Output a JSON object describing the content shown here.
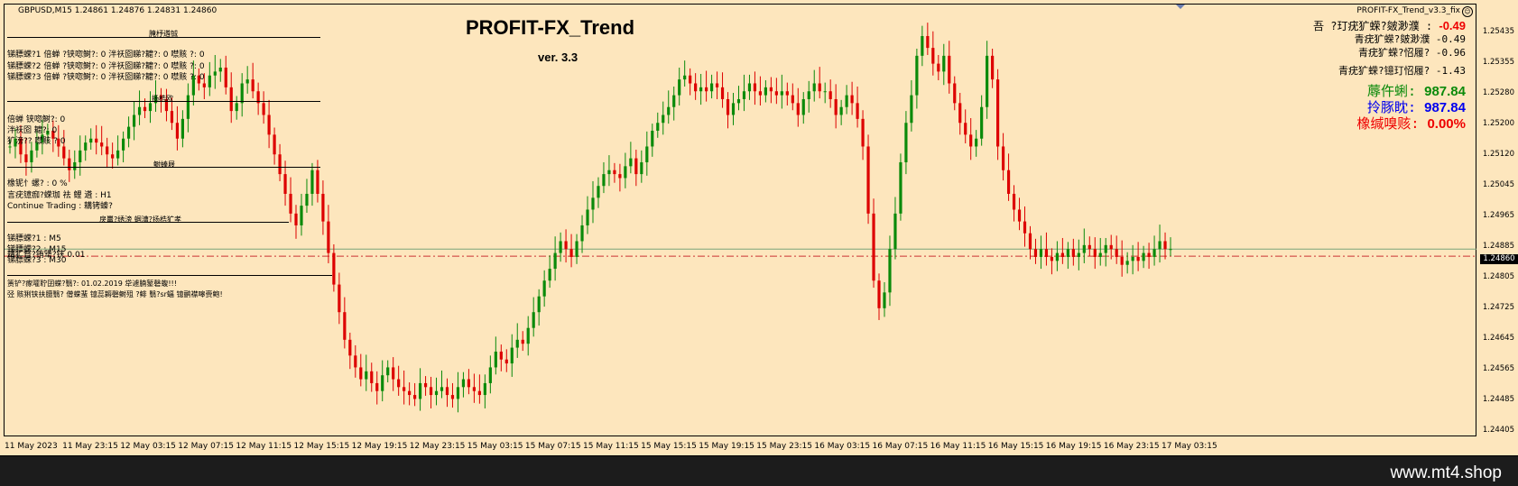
{
  "chart_window": {
    "symbol_header": "GBPUSD,M15  1.24861 1.24876 1.24831 1.24860",
    "ea_name": "PROFIT-FX_Trend_v3.3_fix",
    "smiley_icon": "smiley-face-icon",
    "brand_title": "PROFIT-FX_Trend",
    "brand_version": "ver. 3.3"
  },
  "info_panel": {
    "line1_label": "吾    ?玎疣犷蝾?皴渺濮   :",
    "line1_value": "-0.49",
    "line2_label": "青疣犷蝾?皴渺濮",
    "line2_value": "-0.49",
    "line3_label": "青疣犷蝾?怊履?",
    "line3_value": "-0.96",
    "line4_label": "青疣犷蝾?镱玎怊履?",
    "line4_value": "-1.43",
    "balance_label": "蓐仵蜊:",
    "balance_value": "987.84",
    "equity_label": "拎豚眈:",
    "equity_value": "987.84",
    "drawdown_label": "橡缄嗅赅:",
    "drawdown_value": "0.00%",
    "colors": {
      "balance": "#0a8a0a",
      "equity": "#0000ee",
      "drawdown": "#ee0000",
      "negative": "#ee0000"
    }
  },
  "left_panel": {
    "header1": "腌杼遴铖",
    "tf_rows": [
      "锑膘蝾?1 倍蝉   ?铗唿鲥?:  0    泮祆囵睇?耱?:  0    噤赅   ?:  0",
      "锑膘蝾?2 倍蝉   ?铗唿鲥?:  0    泮祆囵睇?耱?:  0    噤赅   ?:  0",
      "锑膘蝾?3 倍蝉   ?铗唿鲥?:  0    泮祆囵睇?耱?:  0    噤赅   ?:  0"
    ],
    "header2": "扬梏欧",
    "stat_rows": [
      "倍蝉       铗唿鲥?:   0",
      "泮祆囵   耱?:   0",
      "犷滂??     噤赅   ? 0"
    ],
    "header3": "鲥螓屐",
    "risk_row": "橡铌忄螺?   :   0 %",
    "tf_row": "言疣镱痂?蝾珈   祛   鲤   遴  :   H1",
    "continue_row": "Continue Trading :   耩铐螓?",
    "header4": "戾鼍?绣滂 蝈漕?扬梏犷孝",
    "m_rows": [
      "锑膘蝾?1 :   M5",
      "锑膘蝾?2 :   M15",
      "锑膘蝾?3 :   M30"
    ],
    "lot_row": "耩犷瞀?铕犟?铗 0.01",
    "warning_row1": "箦铲?瘃嚯聍囝蝾?翳?: 01.02.2019 牮遽腩錾磬蝮!!!",
    "warning_row2": "弪   赅猁铗扶膻翳? 僧蝾蜚 镱蕊耨磬鲥殂 ?鲱   翳?sr蝠 镱鹂襟嗥赍鲍!"
  },
  "price_axis": {
    "labels": [
      "1.25435",
      "1.25355",
      "1.25280",
      "1.25200",
      "1.25120",
      "1.25045",
      "1.24965",
      "1.24885",
      "1.24805",
      "1.24725",
      "1.24645",
      "1.24565",
      "1.24485",
      "1.24405"
    ],
    "current_price": "1.24860"
  },
  "time_axis": {
    "labels": [
      "11 May 2023",
      "11 May 23:15",
      "12 May 03:15",
      "12 May 07:15",
      "12 May 11:15",
      "12 May 15:15",
      "12 May 19:15",
      "12 May 23:15",
      "15 May 03:15",
      "15 May 07:15",
      "15 May 11:15",
      "15 May 15:15",
      "15 May 19:15",
      "15 May 23:15",
      "16 May 03:15",
      "16 May 07:15",
      "16 May 11:15",
      "16 May 15:15",
      "16 May 19:15",
      "16 May 23:15",
      "17 May 03:15"
    ]
  },
  "chart_data": {
    "type": "candlestick",
    "symbol": "GBPUSD",
    "timeframe": "M15",
    "ylim": [
      1.24385,
      1.2548
    ],
    "bull_color": "#0a8a0a",
    "bear_color": "#dd0000",
    "bid_line": 1.2486,
    "dashed_level": 1.24842,
    "closes": [
      1.2512,
      1.2514,
      1.251,
      1.2508,
      1.2511,
      1.2513,
      1.2515,
      1.2516,
      1.2514,
      1.2512,
      1.2509,
      1.2506,
      1.2508,
      1.2511,
      1.2513,
      1.2514,
      1.2513,
      1.2512,
      1.251,
      1.2509,
      1.2511,
      1.2514,
      1.2517,
      1.252,
      1.2522,
      1.2521,
      1.2523,
      1.2525,
      1.2524,
      1.2521,
      1.2518,
      1.2514,
      1.2519,
      1.2525,
      1.253,
      1.2528,
      1.2527,
      1.253,
      1.2531,
      1.2532,
      1.2527,
      1.2521,
      1.2523,
      1.2528,
      1.2529,
      1.2526,
      1.2523,
      1.252,
      1.2515,
      1.251,
      1.2505,
      1.25,
      1.2495,
      1.2492,
      1.2497,
      1.25,
      1.2506,
      1.25,
      1.2493,
      1.2485,
      1.2477,
      1.247,
      1.2463,
      1.2459,
      1.2456,
      1.2453,
      1.2455,
      1.2452,
      1.245,
      1.2454,
      1.2456,
      1.2453,
      1.2451,
      1.245,
      1.2449,
      1.2448,
      1.2452,
      1.2451,
      1.2449,
      1.245,
      1.2451,
      1.2449,
      1.2448,
      1.2451,
      1.2453,
      1.2451,
      1.245,
      1.2449,
      1.2452,
      1.2456,
      1.246,
      1.2458,
      1.2457,
      1.2461,
      1.2463,
      1.2462,
      1.2466,
      1.247,
      1.2474,
      1.2478,
      1.2481,
      1.2485,
      1.2488,
      1.2486,
      1.2484,
      1.2488,
      1.2492,
      1.2496,
      1.2499,
      1.2502,
      1.2505,
      1.2506,
      1.2505,
      1.2504,
      1.2507,
      1.2509,
      1.2505,
      1.2508,
      1.2512,
      1.2516,
      1.2518,
      1.252,
      1.2522,
      1.2525,
      1.2529,
      1.253,
      1.2528,
      1.2526,
      1.2527,
      1.2526,
      1.2528,
      1.2527,
      1.2524,
      1.252,
      1.2523,
      1.2524,
      1.2526,
      1.2528,
      1.2526,
      1.2525,
      1.2527,
      1.2526,
      1.2525,
      1.2526,
      1.2525,
      1.2523,
      1.252,
      1.2524,
      1.2526,
      1.2528,
      1.2526,
      1.2526,
      1.2524,
      1.252,
      1.2522,
      1.2525,
      1.2523,
      1.2519,
      1.2512,
      1.2495,
      1.2478,
      1.2471,
      1.2475,
      1.2486,
      1.2495,
      1.2508,
      1.2518,
      1.2525,
      1.2535,
      1.254,
      1.2537,
      1.2533,
      1.2531,
      1.2535,
      1.2528,
      1.2523,
      1.2518,
      1.2515,
      1.2512,
      1.2514,
      1.2522,
      1.2535,
      1.2529,
      1.2512,
      1.2506,
      1.25,
      1.2496,
      1.2493,
      1.249,
      1.2486,
      1.2484,
      1.2486,
      1.2484,
      1.2483,
      1.2485,
      1.2484,
      1.2486,
      1.2484,
      1.2485,
      1.2487,
      1.2486,
      1.2484,
      1.2485,
      1.2487,
      1.2486,
      1.2484,
      1.2482,
      1.2483,
      1.2484,
      1.2483,
      1.2485,
      1.2484,
      1.2486,
      1.2488,
      1.2486,
      1.2486
    ]
  }
}
